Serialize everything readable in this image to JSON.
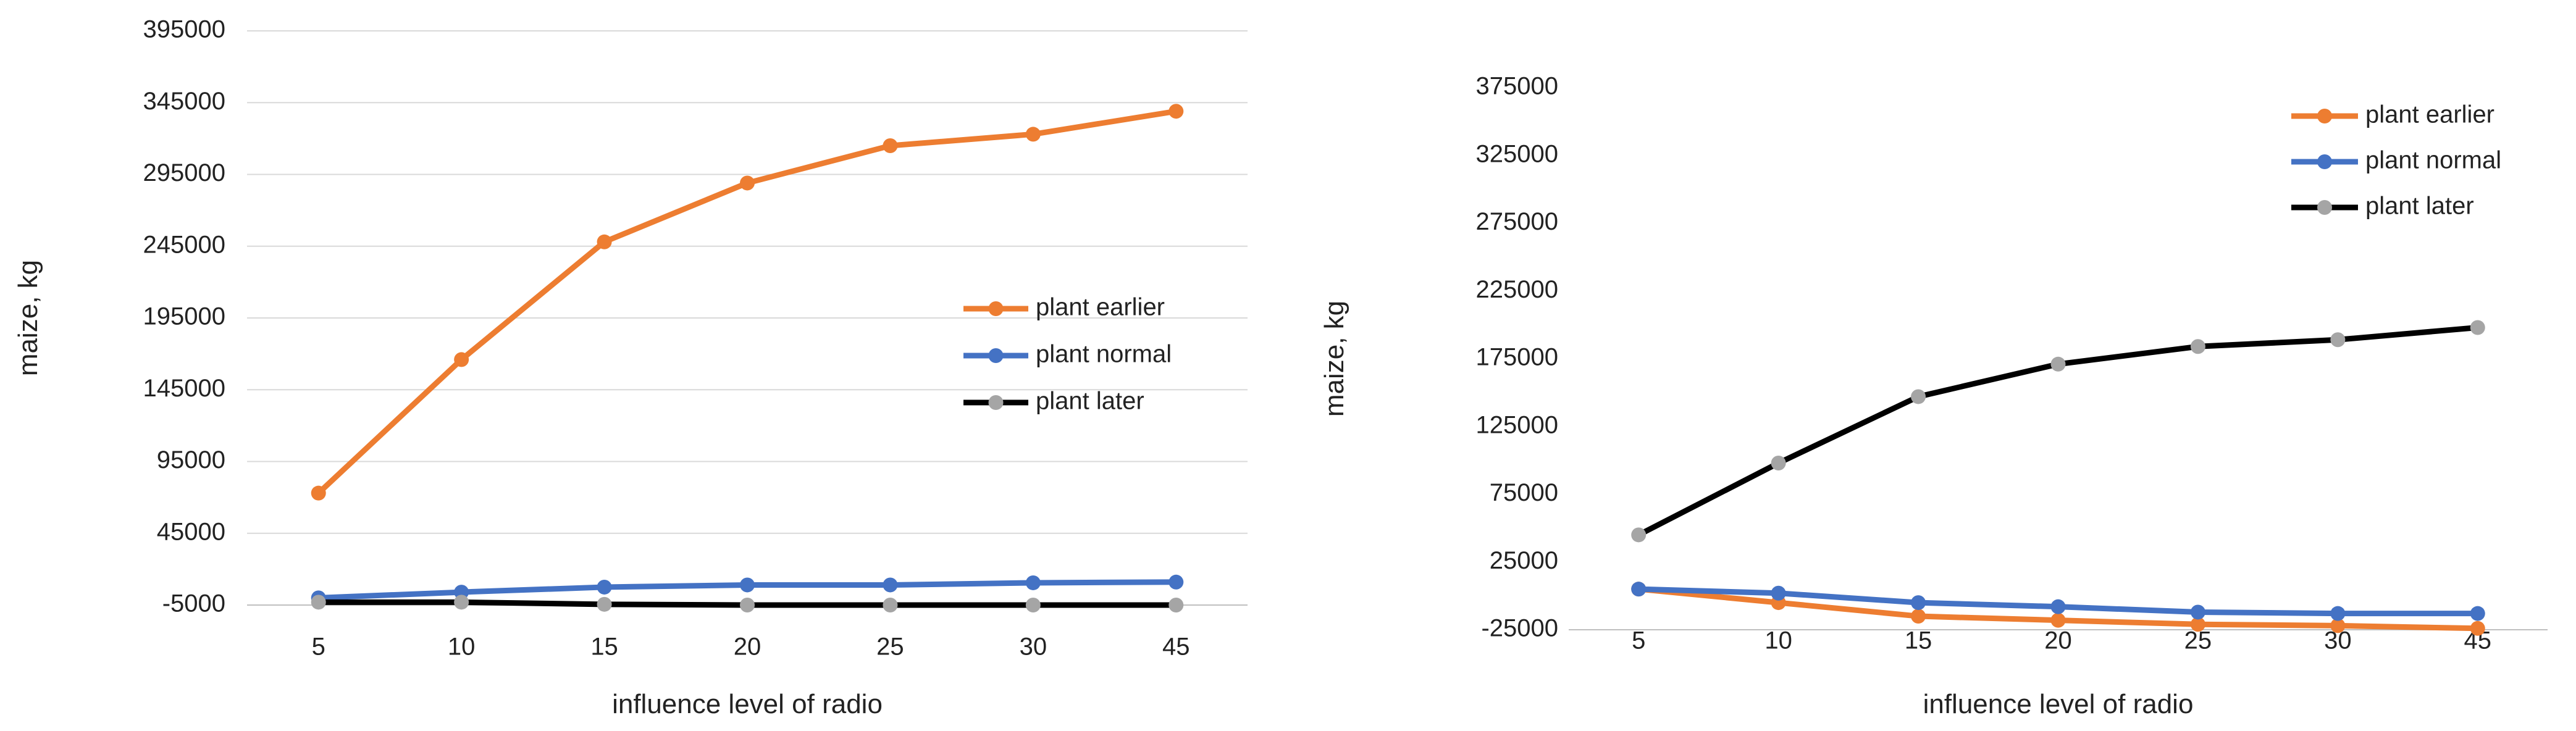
{
  "chart_data": [
    {
      "type": "line",
      "title": "",
      "xlabel": "influence level of radio",
      "ylabel": "maize, kg",
      "categories": [
        "5",
        "10",
        "15",
        "20",
        "25",
        "30",
        "45"
      ],
      "ylim": [
        -5000,
        395000
      ],
      "yticks": [
        "-5000",
        "45000",
        "95000",
        "145000",
        "195000",
        "245000",
        "295000",
        "345000",
        "395000"
      ],
      "ytick_values": [
        -5000,
        45000,
        95000,
        145000,
        195000,
        245000,
        295000,
        345000,
        395000
      ],
      "grid": true,
      "legend_position": "right",
      "series": [
        {
          "name": "plant earlier",
          "color": "#ED7D31",
          "marker_color": "#ED7D31",
          "values": [
            73000,
            166000,
            248000,
            289000,
            315000,
            323000,
            339000
          ]
        },
        {
          "name": "plant normal",
          "color": "#4472C4",
          "marker_color": "#4472C4",
          "values": [
            0,
            4000,
            7500,
            9000,
            9000,
            10500,
            11000
          ]
        },
        {
          "name": "plant later",
          "color": "#000000",
          "marker_color": "#A5A5A5",
          "values": [
            -3000,
            -3000,
            -4500,
            -5000,
            -5000,
            -5000,
            -5000
          ]
        }
      ]
    },
    {
      "type": "line",
      "title": "",
      "xlabel": "influence level of radio",
      "ylabel": "maize, kg",
      "categories": [
        "5",
        "10",
        "15",
        "20",
        "25",
        "30",
        "45"
      ],
      "ylim": [
        -25000,
        375000
      ],
      "yticks": [
        "-25000",
        "25000",
        "75000",
        "125000",
        "175000",
        "225000",
        "275000",
        "325000",
        "375000"
      ],
      "ytick_values": [
        -25000,
        25000,
        75000,
        125000,
        175000,
        225000,
        275000,
        325000,
        375000
      ],
      "grid": false,
      "legend_position": "top-right",
      "series": [
        {
          "name": "plant earlier",
          "color": "#ED7D31",
          "marker_color": "#ED7D31",
          "values": [
            5000,
            -5000,
            -15000,
            -18000,
            -21000,
            -22000,
            -24000
          ]
        },
        {
          "name": "plant normal",
          "color": "#4472C4",
          "marker_color": "#4472C4",
          "values": [
            5000,
            2000,
            -5000,
            -8000,
            -12000,
            -13000,
            -13000
          ]
        },
        {
          "name": "plant later",
          "color": "#000000",
          "marker_color": "#A5A5A5",
          "values": [
            45000,
            98000,
            147000,
            171000,
            184000,
            189000,
            198000
          ]
        }
      ]
    }
  ]
}
